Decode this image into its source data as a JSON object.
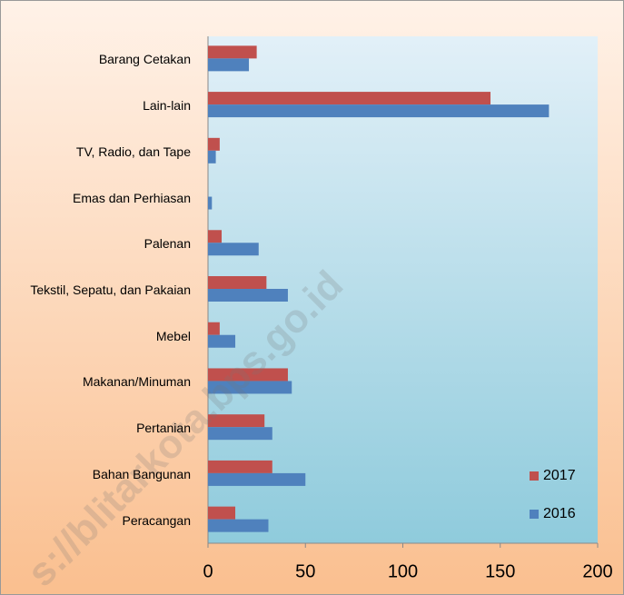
{
  "chart_data": {
    "type": "bar",
    "orientation": "horizontal",
    "categories": [
      "Barang Cetakan",
      "Lain-lain",
      "TV, Radio, dan Tape",
      "Emas dan Perhiasan",
      "Palenan",
      "Tekstil, Sepatu, dan Pakaian",
      "Mebel",
      "Makanan/Minuman",
      "Pertanian",
      "Bahan Bangunan",
      "Peracangan"
    ],
    "series": [
      {
        "name": "2017",
        "color": "#c0504d",
        "values": [
          25,
          145,
          6,
          0,
          7,
          30,
          6,
          41,
          29,
          33,
          14
        ]
      },
      {
        "name": "2016",
        "color": "#4f81bd",
        "values": [
          21,
          175,
          4,
          2,
          26,
          41,
          14,
          43,
          33,
          50,
          31
        ]
      }
    ],
    "xlim": [
      0,
      200
    ],
    "xticks": [
      0,
      50,
      100,
      150,
      200
    ],
    "grid": false,
    "legend": "lower right",
    "watermark": "s://blitarkota.bps.go.id"
  }
}
